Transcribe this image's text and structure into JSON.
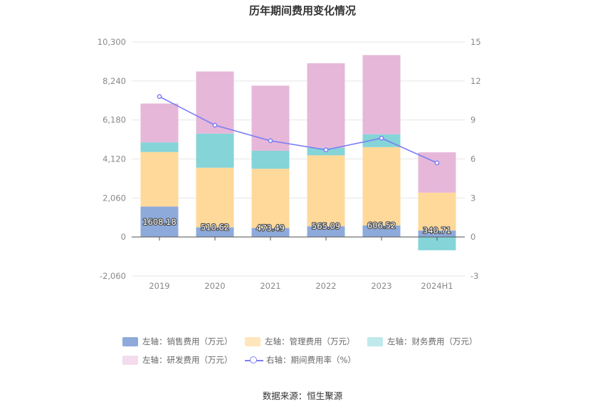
{
  "title": "历年期间费用变化情况",
  "source": "数据来源：恒生聚源",
  "chart_data": {
    "type": "bar",
    "stacked": true,
    "categories": [
      "2019",
      "2020",
      "2021",
      "2022",
      "2023",
      "2024H1"
    ],
    "left_axis": {
      "min": -2060,
      "max": 10300,
      "ticks": [
        "-2,060",
        "0",
        "2,060",
        "4,120",
        "6,180",
        "8,240",
        "10,300"
      ],
      "tick_values": [
        -2060,
        0,
        2060,
        4120,
        6180,
        8240,
        10300
      ]
    },
    "right_axis": {
      "min": -3,
      "max": 15,
      "ticks": [
        "-3",
        "0",
        "3",
        "6",
        "9",
        "12",
        "15"
      ],
      "tick_values": [
        -3,
        0,
        3,
        6,
        9,
        12,
        15
      ]
    },
    "series": [
      {
        "name": "左轴：销售费用（万元）",
        "key": "sales",
        "color": "#8eaadb",
        "values": [
          1608.18,
          510.62,
          473.49,
          565.09,
          606.52,
          340.71
        ],
        "labels": [
          "1608.18",
          "510.62",
          "473.49",
          "565.09",
          "606.52",
          "340.71"
        ]
      },
      {
        "name": "左轴：管理费用（万元）",
        "key": "admin",
        "color": "#ffd99a",
        "values": [
          2880,
          3150,
          3130,
          3750,
          4140,
          2000
        ]
      },
      {
        "name": "左轴：财务费用（万元）",
        "key": "finance",
        "color": "#84d4d8",
        "values": [
          510,
          1800,
          950,
          390,
          680,
          -700
        ]
      },
      {
        "name": "左轴：研发费用（万元）",
        "key": "rnd",
        "color": "#e6b7d9",
        "values": [
          2050,
          3280,
          3440,
          4470,
          4180,
          2130
        ]
      }
    ],
    "line": {
      "name": "右轴：期间费用率（%）",
      "color": "#7b7ff2",
      "values": [
        10.8,
        8.6,
        7.4,
        6.7,
        7.6,
        5.7
      ]
    },
    "legend_position": "bottom"
  }
}
